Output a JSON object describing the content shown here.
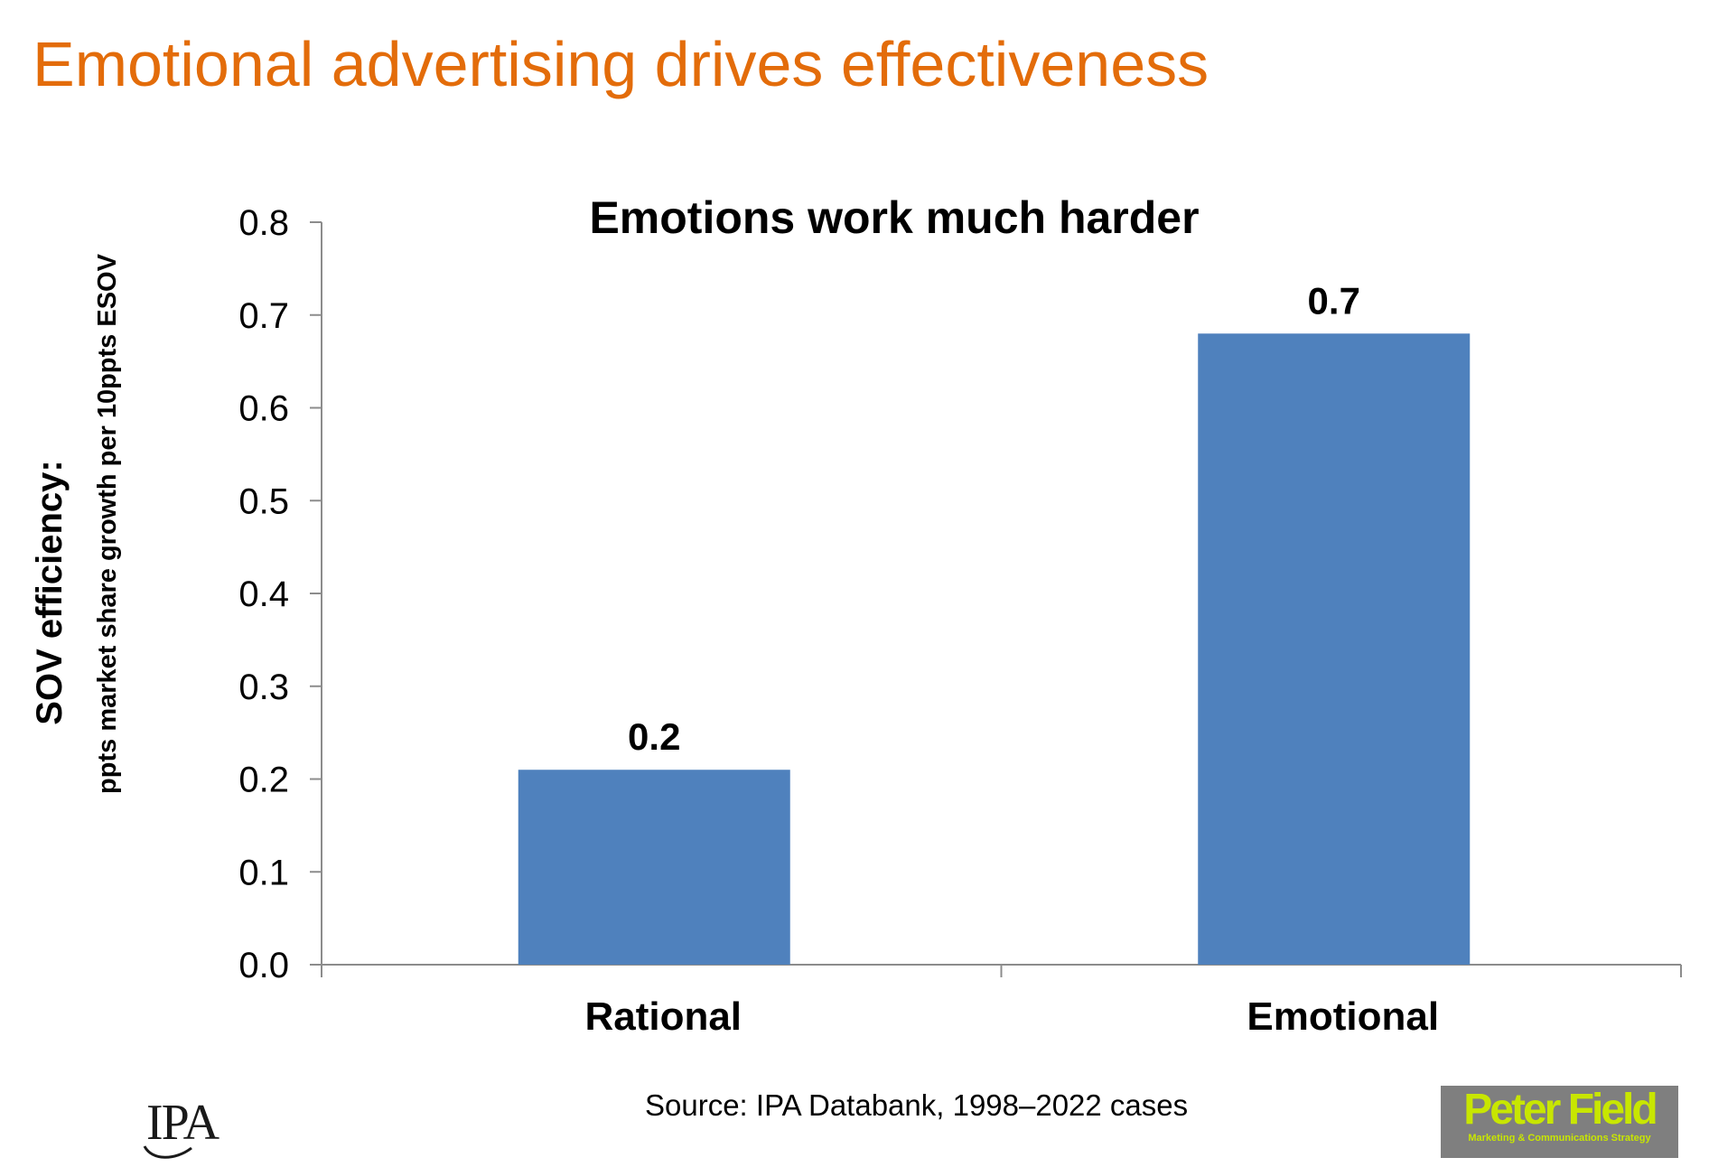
{
  "slide": {
    "title": "Emotional advertising drives effectiveness",
    "title_color": "#E36C0A",
    "source": "Source: IPA Databank, 1998–2022 cases"
  },
  "logos": {
    "ipa": {
      "text": "IPA"
    },
    "peter_field": {
      "name": "Peter Field",
      "tagline": "Marketing & Communications Strategy",
      "text_color": "#C8E600",
      "background_color": "#7F7F7F"
    }
  },
  "chart_data": {
    "type": "bar",
    "title": "Emotions work much harder",
    "ylabel": "SOV efficiency:",
    "ylabel_sub": "ppts market share growth per 10ppts ESOV",
    "xlabel": "",
    "categories": [
      "Rational",
      "Emotional"
    ],
    "values": [
      0.21,
      0.68
    ],
    "data_labels": [
      "0.2",
      "0.7"
    ],
    "ylim": [
      0,
      0.8
    ],
    "yticks": [
      0.0,
      0.1,
      0.2,
      0.3,
      0.4,
      0.5,
      0.6,
      0.7,
      0.8
    ],
    "ytick_labels": [
      "0.0",
      "0.1",
      "0.2",
      "0.3",
      "0.4",
      "0.5",
      "0.6",
      "0.7",
      "0.8"
    ],
    "bar_color": "#4F81BD",
    "grid": false,
    "legend": "none"
  }
}
